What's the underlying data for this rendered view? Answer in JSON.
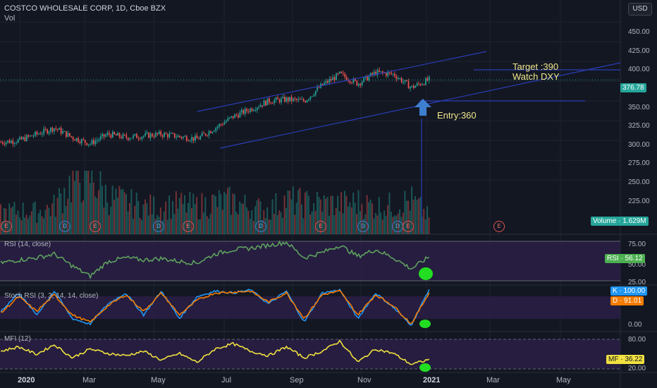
{
  "header": {
    "title": "COSTCO WHOLESALE CORP, 1D, Cboe BZX",
    "subtitle": "Vol",
    "currency": "USD"
  },
  "annotations": {
    "target": "Target :390",
    "watch": "Watch DXY",
    "entry": "Entry:360"
  },
  "colors": {
    "background": "#131722",
    "up_candle": "#26a69a",
    "down_candle": "#ef5350",
    "trend_lines": "#2a3db5",
    "rsi_line": "#5ea15e",
    "stoch_k": "#2196f3",
    "stoch_d": "#f57c00",
    "mfi_line": "#f0e040",
    "indicator_band": "#2a1e45",
    "marker_green": "#22dd22",
    "arrow": "#3e7fd0"
  },
  "price_axis": [
    "450.00",
    "425.00",
    "400.00",
    "375.00",
    "350.00",
    "325.00",
    "300.00",
    "275.00",
    "250.00",
    "225.00"
  ],
  "rsi_axis": [
    "75.00",
    "50.00",
    "25.00"
  ],
  "stoch_axis": [
    "0.00"
  ],
  "mfi_axis": [
    "80.00",
    "20.00"
  ],
  "time_axis": [
    "2020",
    "Mar",
    "May",
    "Jul",
    "Sep",
    "Nov",
    "2021",
    "Mar",
    "May"
  ],
  "tags": {
    "price": "376.78",
    "volume_label": "Volume",
    "volume": "1.629M",
    "rsi_label": "RSI",
    "rsi": "56.12",
    "stoch_k_label": "K",
    "stoch_k": "100.00",
    "stoch_d_label": "D",
    "stoch_d": "91.01",
    "mfi_label": "MF",
    "mfi": "36.22"
  },
  "events": [
    "E",
    "D",
    "E",
    "D",
    "E",
    "D",
    "E",
    "D",
    "D",
    "E",
    "E"
  ],
  "panes": {
    "rsi": "RSI (14, close)",
    "stoch": "Stoch RSI (3, 3, 14, 14, close)",
    "mfi": "MFI (12)"
  },
  "chart_data": [
    {
      "type": "candlestick",
      "title": "COSTCO WHOLESALE CORP, 1D, Cboe BZX",
      "x": [
        "2020-01-01",
        "2020-01-15",
        "2020-02-01",
        "2020-02-15",
        "2020-03-01",
        "2020-03-15",
        "2020-04-01",
        "2020-04-15",
        "2020-05-01",
        "2020-05-15",
        "2020-06-01",
        "2020-06-15",
        "2020-07-01",
        "2020-07-15",
        "2020-08-01",
        "2020-08-15",
        "2020-09-01",
        "2020-09-15",
        "2020-10-01",
        "2020-10-15",
        "2020-11-01",
        "2020-11-15",
        "2020-12-01",
        "2020-12-15",
        "2021-01-01"
      ],
      "close": [
        298,
        300,
        308,
        316,
        304,
        296,
        308,
        304,
        306,
        308,
        305,
        302,
        316,
        330,
        340,
        350,
        352,
        350,
        370,
        384,
        372,
        386,
        384,
        367,
        377
      ],
      "ylim": [
        210,
        460
      ],
      "last_price": 376.78
    },
    {
      "type": "bar",
      "name": "Vol",
      "values": [
        2.0,
        2.2,
        2.1,
        2.6,
        5.0,
        5.5,
        3.5,
        3.0,
        2.6,
        2.5,
        2.8,
        2.6,
        3.0,
        3.1,
        2.5,
        2.3,
        3.2,
        2.9,
        2.9,
        2.8,
        3.0,
        2.6,
        2.7,
        3.2,
        1.629
      ]
    },
    {
      "type": "line",
      "name": "RSI (14, close)",
      "values": [
        48,
        52,
        55,
        60,
        44,
        30,
        50,
        55,
        52,
        54,
        50,
        48,
        60,
        66,
        68,
        72,
        76,
        55,
        62,
        72,
        57,
        66,
        55,
        40,
        56.12
      ],
      "ylim": [
        20,
        85
      ]
    },
    {
      "type": "line",
      "name": "Stoch RSI (3, 3, 14, 14, close)",
      "series": [
        {
          "name": "K",
          "values": [
            40,
            90,
            30,
            95,
            20,
            5,
            60,
            90,
            30,
            95,
            20,
            80,
            95,
            90,
            98,
            60,
            95,
            10,
            90,
            98,
            20,
            90,
            50,
            2,
            100.0
          ]
        },
        {
          "name": "D",
          "values": [
            35,
            80,
            40,
            85,
            30,
            10,
            55,
            85,
            40,
            90,
            30,
            70,
            90,
            92,
            95,
            65,
            90,
            20,
            85,
            95,
            30,
            85,
            55,
            5,
            91.01
          ]
        }
      ],
      "ylim": [
        0,
        100
      ]
    },
    {
      "type": "line",
      "name": "MFI (12)",
      "values": [
        55,
        65,
        48,
        70,
        40,
        60,
        50,
        45,
        55,
        35,
        50,
        30,
        60,
        72,
        55,
        45,
        65,
        40,
        55,
        78,
        30,
        60,
        50,
        25,
        36.22
      ],
      "ylim": [
        10,
        90
      ]
    }
  ]
}
